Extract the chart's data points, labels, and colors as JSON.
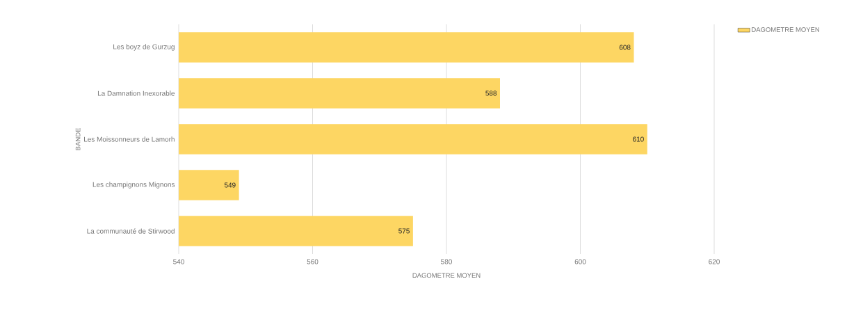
{
  "chart_data": {
    "type": "bar",
    "orientation": "horizontal",
    "xlabel": "DAGOMETRE MOYEN",
    "ylabel": "BANDE",
    "categories": [
      "Les boyz de Gurzug",
      "La Damnation Inexorable",
      "Les Moissonneurs de Lamorh",
      "Les champignons Mignons",
      "La communauté de Stirwood"
    ],
    "series": [
      {
        "name": "DAGOMETRE MOYEN",
        "color": "#fdd663",
        "values": [
          608,
          588,
          610,
          549,
          575
        ]
      }
    ],
    "xlim": [
      540,
      620
    ],
    "xticks": [
      540,
      560,
      580,
      600,
      620
    ],
    "grid": "x",
    "legend": "top right",
    "data_labels": true
  }
}
